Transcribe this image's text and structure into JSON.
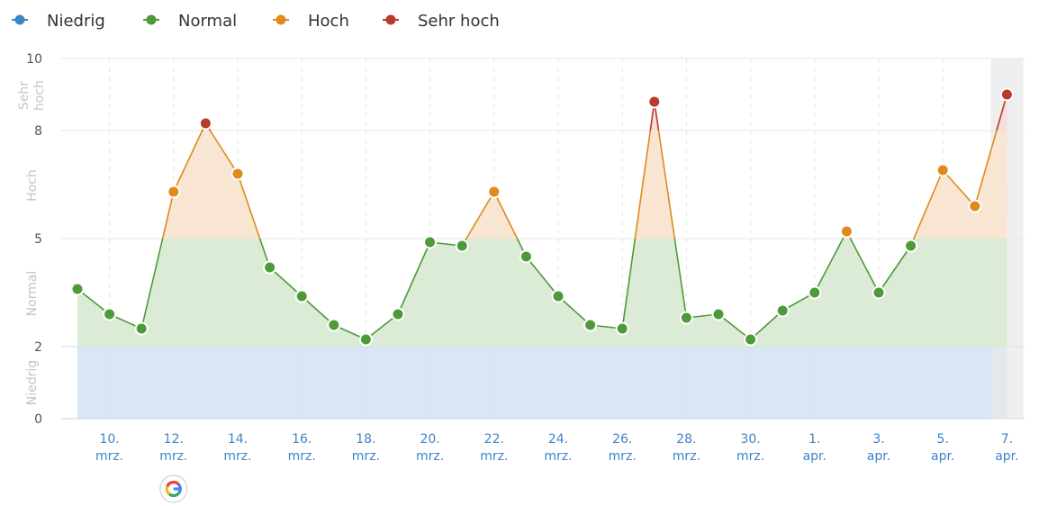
{
  "legend": [
    {
      "key": "low",
      "label": "Niedrig",
      "color": "#3a87c8"
    },
    {
      "key": "normal",
      "label": "Normal",
      "color": "#4e9a3a"
    },
    {
      "key": "high",
      "label": "Hoch",
      "color": "#e08a1e"
    },
    {
      "key": "very_high",
      "label": "Sehr hoch",
      "color": "#b83a2e"
    }
  ],
  "chart_data": {
    "type": "line",
    "y_ticks": [
      "0",
      "2",
      "5",
      "8",
      "10"
    ],
    "ylim": [
      0,
      10
    ],
    "bands": [
      {
        "label": "Niedrig",
        "from": 0,
        "to": 2,
        "color": "#d8e7f3"
      },
      {
        "label": "Normal",
        "from": 2,
        "to": 5,
        "color": "#dcebd6"
      },
      {
        "label": "Hoch",
        "from": 5,
        "to": 8,
        "color": "#f8e5d2"
      },
      {
        "label": "Sehr hoch",
        "from": 8,
        "to": 10,
        "color": "#f6dede"
      }
    ],
    "x_tick_labels": [
      {
        "day": "10.",
        "month": "mrz."
      },
      {
        "day": "12.",
        "month": "mrz."
      },
      {
        "day": "14.",
        "month": "mrz."
      },
      {
        "day": "16.",
        "month": "mrz."
      },
      {
        "day": "18.",
        "month": "mrz."
      },
      {
        "day": "20.",
        "month": "mrz."
      },
      {
        "day": "22.",
        "month": "mrz."
      },
      {
        "day": "24.",
        "month": "mrz."
      },
      {
        "day": "26.",
        "month": "mrz."
      },
      {
        "day": "28.",
        "month": "mrz."
      },
      {
        "day": "30.",
        "month": "mrz."
      },
      {
        "day": "1.",
        "month": "apr."
      },
      {
        "day": "3.",
        "month": "apr."
      },
      {
        "day": "5.",
        "month": "apr."
      },
      {
        "day": "7.",
        "month": "apr."
      }
    ],
    "series": [
      {
        "x": [
          "9. mrz.",
          "10. mrz.",
          "11. mrz.",
          "12. mrz.",
          "13. mrz.",
          "14. mrz.",
          "15. mrz.",
          "16. mrz.",
          "17. mrz.",
          "18. mrz.",
          "19. mrz.",
          "20. mrz.",
          "21. mrz.",
          "22. mrz.",
          "23. mrz.",
          "24. mrz.",
          "25. mrz.",
          "26. mrz.",
          "27. mrz.",
          "28. mrz.",
          "29. mrz.",
          "30. mrz.",
          "31. mrz.",
          "1. apr.",
          "2. apr.",
          "3. apr.",
          "4. apr.",
          "5. apr.",
          "6. apr.",
          "7. apr."
        ],
        "values": [
          3.6,
          2.9,
          2.5,
          6.3,
          8.2,
          6.8,
          4.2,
          3.4,
          2.6,
          2.2,
          2.9,
          4.9,
          4.8,
          6.3,
          4.5,
          3.4,
          2.6,
          2.5,
          8.8,
          2.8,
          2.9,
          2.2,
          3.0,
          3.5,
          5.2,
          3.5,
          4.8,
          6.9,
          5.9,
          9.0
        ]
      }
    ],
    "highlight_last": true,
    "grid": true
  },
  "annotations": [
    {
      "at": "12. mrz.",
      "icon": "google-g-icon"
    }
  ]
}
